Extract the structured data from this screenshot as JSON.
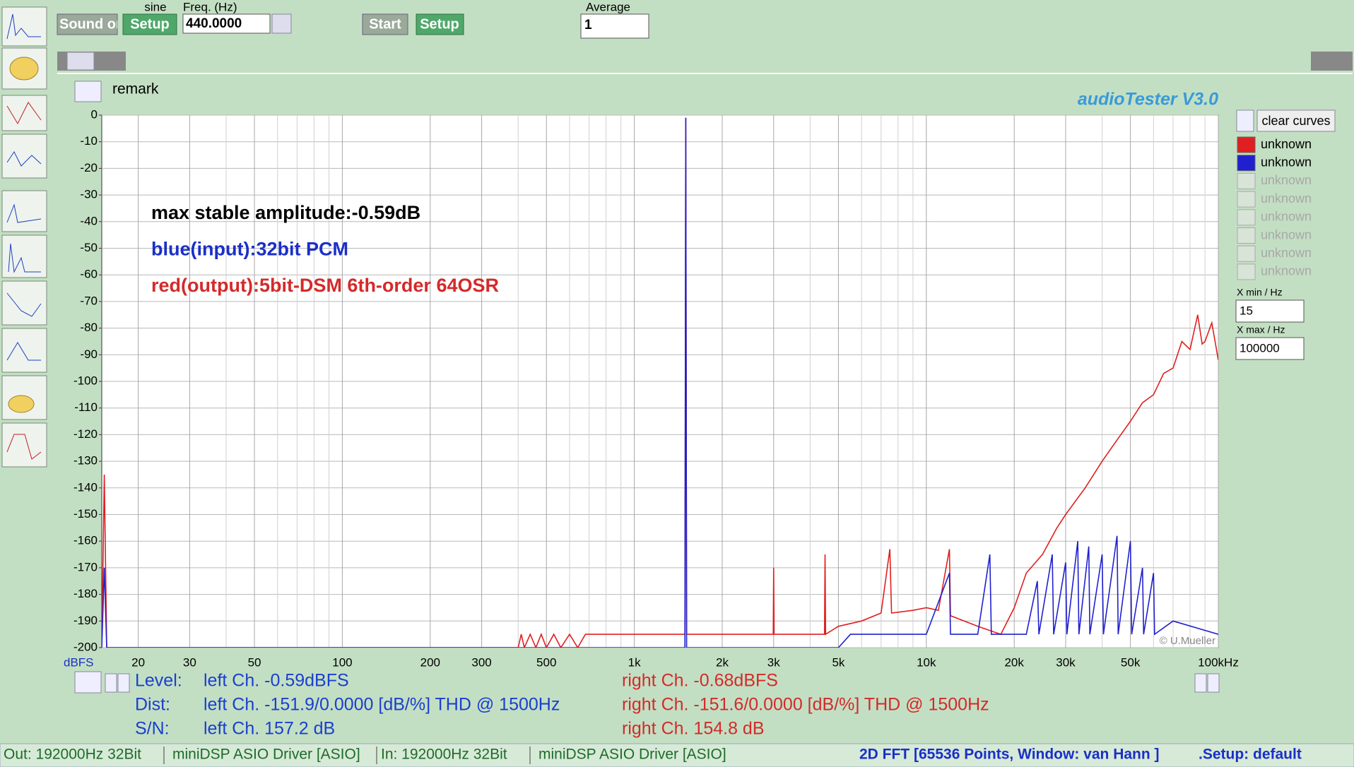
{
  "toolbar": {
    "sound_button": "Sound on",
    "generator_label": "sine",
    "generator_setup": "Setup",
    "freq_label": "Freq. (Hz)",
    "freq_value": "440.0000",
    "start": "Start",
    "analyzer_setup": "Setup",
    "average_label": "Average",
    "average_value": "1"
  },
  "remark": "remark",
  "app_title": "audioTester  V3.0",
  "chart_data": {
    "type": "line",
    "xscale": "log",
    "grid": true,
    "y_unit": "dBFS",
    "xlim": [
      15,
      100000
    ],
    "ylim": [
      -200,
      0
    ],
    "yticks": [
      0,
      -10,
      -20,
      -30,
      -40,
      -50,
      -60,
      -70,
      -80,
      -90,
      -100,
      -110,
      -120,
      -130,
      -140,
      -150,
      -160,
      -170,
      -180,
      -190,
      -200
    ],
    "xticks": [
      20,
      30,
      50,
      100,
      200,
      300,
      500,
      {
        "value": 1000,
        "label": "1k"
      },
      {
        "value": 2000,
        "label": "2k"
      },
      {
        "value": 3000,
        "label": "3k"
      },
      {
        "value": 5000,
        "label": "5k"
      },
      {
        "value": 10000,
        "label": "10k"
      },
      {
        "value": 20000,
        "label": "20k"
      },
      {
        "value": 30000,
        "label": "30k"
      },
      {
        "value": 50000,
        "label": "50k"
      },
      {
        "value": 100000,
        "label": "100kHz"
      }
    ],
    "xminor": [
      40,
      60,
      70,
      80,
      90,
      400,
      600,
      700,
      800,
      900,
      4000,
      6000,
      7000,
      8000,
      9000,
      40000,
      60000,
      70000,
      80000,
      90000
    ],
    "annotations": [
      {
        "text": "max stable amplitude:-0.59dB",
        "color": "#000000"
      },
      {
        "text": "blue(input):32bit PCM",
        "color": "#1a2fc8"
      },
      {
        "text": "red(output):5bit-DSM 6th-order 64OSR",
        "color": "#d42a2a"
      }
    ],
    "credit": "© U.Mueller",
    "series": [
      {
        "name": "unknown",
        "color": "#e02020",
        "x": [
          15,
          15.3,
          15.6,
          400,
          410,
          420,
          440,
          460,
          480,
          500,
          530,
          560,
          600,
          640,
          680,
          700,
          1490,
          1500,
          1510,
          2990,
          3000,
          3010,
          4480,
          4500,
          4520,
          5000,
          6000,
          7000,
          7500,
          7600,
          9000,
          10000,
          11000,
          12000,
          12100,
          15000,
          18000,
          20000,
          22000,
          25000,
          28000,
          30000,
          35000,
          40000,
          45000,
          50000,
          55000,
          60000,
          65000,
          70000,
          75000,
          80000,
          85000,
          88000,
          90000,
          95000,
          100000
        ],
        "values": [
          -200,
          -135,
          -200,
          -200,
          -195,
          -200,
          -195,
          -200,
          -195,
          -200,
          -195,
          -200,
          -195,
          -200,
          -195,
          -195,
          -195,
          -1,
          -195,
          -195,
          -170,
          -195,
          -195,
          -165,
          -195,
          -192,
          -190,
          -187,
          -163,
          -187,
          -186,
          -185,
          -186,
          -163,
          -188,
          -192,
          -195,
          -185,
          -172,
          -165,
          -155,
          -150,
          -140,
          -130,
          -122,
          -115,
          -108,
          -105,
          -97,
          -95,
          -85,
          -88,
          -75,
          -86,
          -85,
          -78,
          -92
        ]
      },
      {
        "name": "unknown",
        "color": "#2020d0",
        "x": [
          15,
          15.3,
          15.6,
          1490,
          1500,
          1510,
          5000,
          5500,
          10000,
          12000,
          12100,
          15000,
          16500,
          16700,
          22000,
          24000,
          24300,
          27000,
          27300,
          30000,
          30300,
          33000,
          33300,
          36000,
          36300,
          40000,
          40400,
          45000,
          45400,
          50000,
          50500,
          55000,
          55500,
          60000,
          60500,
          70000,
          100000
        ],
        "values": [
          -200,
          -170,
          -200,
          -200,
          -1,
          -200,
          -200,
          -195,
          -195,
          -172,
          -195,
          -195,
          -165,
          -195,
          -195,
          -175,
          -195,
          -165,
          -195,
          -168,
          -195,
          -160,
          -195,
          -162,
          -195,
          -165,
          -195,
          -158,
          -195,
          -160,
          -195,
          -170,
          -195,
          -172,
          -195,
          -190,
          -195
        ]
      }
    ]
  },
  "side_panel": {
    "clear_curves": "clear curves",
    "curve_slots": [
      "unknown",
      "unknown",
      "unknown",
      "unknown",
      "unknown",
      "unknown"
    ],
    "xmin_label": "X min / Hz",
    "xmax_label": "X max / Hz"
  },
  "measurements": {
    "rows": [
      {
        "label": "Level:",
        "left": "left Ch. -0.59dBFS",
        "right": "right Ch. -0.68dBFS"
      },
      {
        "label": "Dist:",
        "left": "left Ch. -151.9/0.0000 [dB/%] THD @ 1500Hz",
        "right": "right Ch. -151.6/0.0000 [dB/%] THD @ 1500Hz"
      },
      {
        "label": "S/N:",
        "left": "left Ch. 157.2 dB",
        "right": "right Ch. 154.8 dB"
      }
    ]
  },
  "status_bar": {
    "out": "Out: 192000Hz 32Bit",
    "out_driver": "miniDSP ASIO Driver [ASIO]",
    "in": "In: 192000Hz 32Bit",
    "in_driver": "miniDSP ASIO Driver [ASIO]",
    "fft": "2D FFT [65536 Points, Window: van Hann ]",
    "setup": ".Setup:  default"
  }
}
